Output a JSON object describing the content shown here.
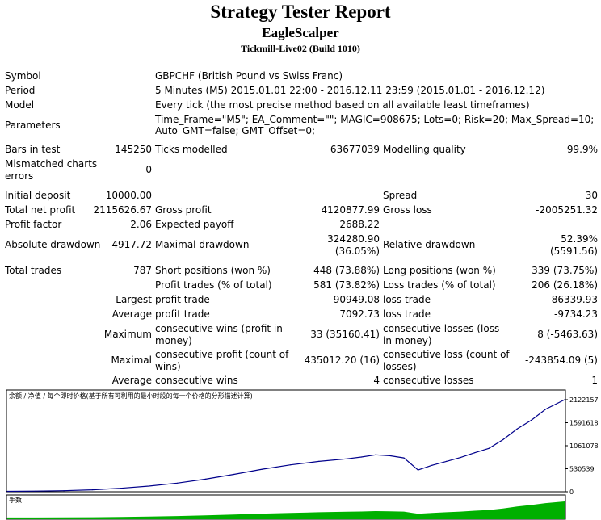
{
  "header": {
    "title": "Strategy Tester Report",
    "expert": "EagleScalper",
    "server": "Tickmill-Live02 (Build 1010)"
  },
  "info": {
    "symbol_label": "Symbol",
    "symbol_value": "GBPCHF (British Pound vs Swiss Franc)",
    "period_label": "Period",
    "period_value": "5 Minutes (M5) 2015.01.01 22:00 - 2016.12.11 23:59 (2015.01.01 - 2016.12.12)",
    "model_label": "Model",
    "model_value": "Every tick (the most precise method based on all available least timeframes)",
    "params_label": "Parameters",
    "params_line1": "Time_Frame=\"M5\"; EA_Comment=\"\"; MAGIC=908675; Lots=0; Risk=20; Max_Spread=10;",
    "params_line2": "Auto_GMT=false; GMT_Offset=0;"
  },
  "stats": {
    "bars_label": "Bars in test",
    "bars_value": "145250",
    "ticks_label": "Ticks modelled",
    "ticks_value": "63677039",
    "quality_label": "Modelling quality",
    "quality_value": "99.9%",
    "mismatch_label": "Mismatched charts errors",
    "mismatch_value": "0",
    "deposit_label": "Initial deposit",
    "deposit_value": "10000.00",
    "spread_label": "Spread",
    "spread_value": "30",
    "netprofit_label": "Total net profit",
    "netprofit_value": "2115626.67",
    "grossprofit_label": "Gross profit",
    "grossprofit_value": "4120877.99",
    "grossloss_label": "Gross loss",
    "grossloss_value": "-2005251.32",
    "pf_label": "Profit factor",
    "pf_value": "2.06",
    "ep_label": "Expected payoff",
    "ep_value": "2688.22",
    "absdd_label": "Absolute drawdown",
    "absdd_value": "4917.72",
    "maxdd_label": "Maximal drawdown",
    "maxdd_value1": "324280.90",
    "maxdd_value2": "(36.05%)",
    "reldd_label": "Relative drawdown",
    "reldd_value1": "52.39%",
    "reldd_value2": "(5591.56)",
    "tt_label": "Total trades",
    "tt_value": "787",
    "short_label": "Short positions (won %)",
    "short_value": "448 (73.88%)",
    "long_label": "Long positions (won %)",
    "long_value": "339 (73.75%)",
    "pt_label": "Profit trades (% of total)",
    "pt_value": "581 (73.82%)",
    "lt_label": "Loss trades (% of total)",
    "lt_value": "206 (26.18%)",
    "largest_label": "Largest",
    "lpt_label": "profit trade",
    "lpt_value": "90949.08",
    "llt_label": "loss trade",
    "llt_value": "-86339.93",
    "average_label": "Average",
    "apt_label": "profit trade",
    "apt_value": "7092.73",
    "alt_label": "loss trade",
    "alt_value": "-9734.23",
    "maximum_label": "Maximum",
    "mcw_label": "consecutive wins (profit in money)",
    "mcw_value": "33 (35160.41)",
    "mcl_label": "consecutive losses (loss in money)",
    "mcl_value": "8 (-5463.63)",
    "maximal_label": "Maximal",
    "mcp_label": "consecutive profit (count of wins)",
    "mcp_value": "435012.20 (16)",
    "mcloss_label": "consecutive loss (count of losses)",
    "mcloss_value": "-243854.09 (5)",
    "avg2_label": "Average",
    "acw_label": "consecutive wins",
    "acw_value": "4",
    "acl_label": "consecutive losses",
    "acl_value": "1"
  },
  "chart_data": {
    "type": "line",
    "legend": "余额 / 净值 / 每个即时价格(基于所有可利用的最小时段的每一个价格的分形描述计算)",
    "volume_label": "手数",
    "y_ticks": [
      "2122157",
      "1591618",
      "1061078",
      "530539",
      "0"
    ],
    "ylim": [
      0,
      2122157
    ],
    "x": [
      0,
      40,
      80,
      120,
      160,
      200,
      240,
      280,
      320,
      360,
      400,
      440,
      480,
      500,
      520,
      540,
      560,
      580,
      600,
      620,
      640,
      660,
      680,
      700,
      720,
      740,
      760,
      787
    ],
    "y": [
      10000,
      15000,
      25000,
      45000,
      80000,
      130000,
      200000,
      290000,
      400000,
      520000,
      620000,
      700000,
      760000,
      800000,
      850000,
      830000,
      780000,
      500000,
      610000,
      700000,
      790000,
      900000,
      1000000,
      1200000,
      1450000,
      1650000,
      1900000,
      2122157
    ],
    "colors": {
      "balance": "#00008b",
      "volume": "#00b000",
      "axis": "#000000",
      "grid": "#c0c0c0"
    }
  }
}
